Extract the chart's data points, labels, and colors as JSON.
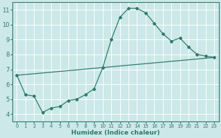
{
  "xlabel": "Humidex (Indice chaleur)",
  "bg_color": "#cce8e8",
  "line_color": "#2d7a6a",
  "grid_color": "#ffffff",
  "xlim": [
    -0.5,
    23.5
  ],
  "ylim": [
    3.5,
    11.5
  ],
  "yticks": [
    4,
    5,
    6,
    7,
    8,
    9,
    10,
    11
  ],
  "xticks": [
    0,
    1,
    2,
    3,
    4,
    5,
    6,
    7,
    8,
    9,
    10,
    11,
    12,
    13,
    14,
    15,
    16,
    17,
    18,
    19,
    20,
    21,
    22,
    23
  ],
  "curve1_x": [
    0,
    1,
    2,
    3,
    4,
    5,
    6,
    7,
    8,
    9,
    10,
    11,
    12,
    13,
    14,
    15,
    16,
    17,
    18,
    19,
    20,
    21,
    22,
    23
  ],
  "curve1_y": [
    6.6,
    5.3,
    5.2,
    4.1,
    4.4,
    4.5,
    4.9,
    5.0,
    5.3,
    5.7,
    7.1,
    9.0,
    10.5,
    11.1,
    11.1,
    10.8,
    10.1,
    9.4,
    8.9,
    9.1,
    8.5,
    8.0,
    7.9,
    7.8
  ],
  "curve2_x": [
    0,
    23
  ],
  "curve2_y": [
    6.6,
    7.8
  ]
}
